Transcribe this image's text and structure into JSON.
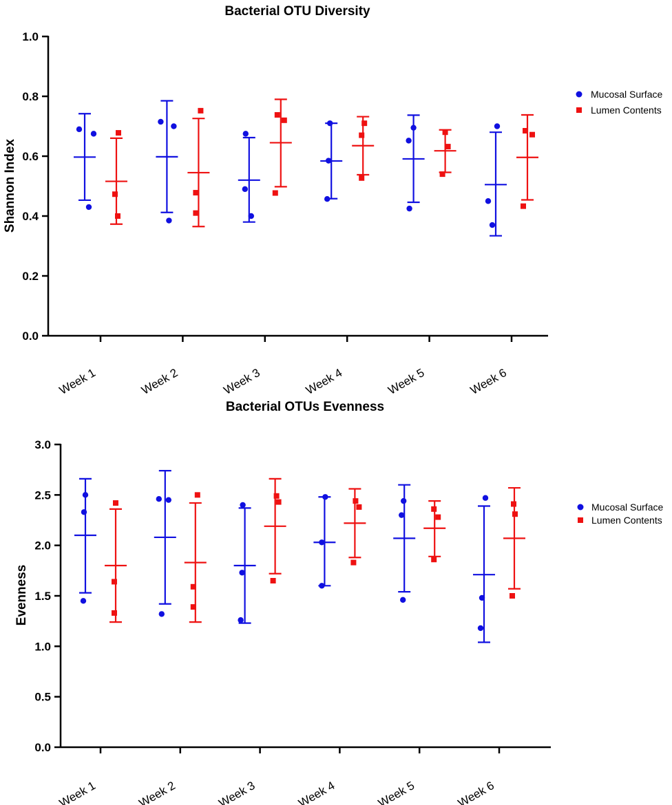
{
  "colors": {
    "mucosal": "#1010e0",
    "lumen": "#ee1111",
    "axis": "#000000"
  },
  "chart_data": [
    {
      "type": "scatter",
      "title": "Bacterial OTU Diversity",
      "xlabel": "",
      "ylabel": "Shannon Index",
      "ylim": [
        0.0,
        1.0
      ],
      "yticks": [
        0.0,
        0.2,
        0.4,
        0.6,
        0.8,
        1.0
      ],
      "ytick_labels": [
        "0.0",
        "0.2",
        "0.4",
        "0.6",
        "0.8",
        "1.0"
      ],
      "categories": [
        "Week 1",
        "Week 2",
        "Week 3",
        "Week 4",
        "Week 5",
        "Week 6"
      ],
      "legend_position": "right",
      "series": [
        {
          "name": "Mucosal Surface",
          "marker": "circle",
          "color": "#1010e0",
          "points": [
            [
              0.69,
              0.675,
              0.43
            ],
            [
              0.715,
              0.7,
              0.385
            ],
            [
              0.675,
              0.49,
              0.4
            ],
            [
              0.71,
              0.585,
              0.457
            ],
            [
              0.695,
              0.652,
              0.425
            ],
            [
              0.7,
              0.45,
              0.37
            ]
          ],
          "mean": [
            0.597,
            0.598,
            0.52,
            0.584,
            0.591,
            0.505
          ],
          "upper": [
            0.742,
            0.785,
            0.662,
            0.71,
            0.737,
            0.68
          ],
          "lower": [
            0.453,
            0.412,
            0.38,
            0.458,
            0.446,
            0.334
          ]
        },
        {
          "name": "Lumen Contents",
          "marker": "square",
          "color": "#ee1111",
          "points": [
            [
              0.678,
              0.473,
              0.4
            ],
            [
              0.752,
              0.478,
              0.41
            ],
            [
              0.738,
              0.72,
              0.477
            ],
            [
              0.71,
              0.67,
              0.527
            ],
            [
              0.68,
              0.632,
              0.54
            ],
            [
              0.685,
              0.672,
              0.433
            ]
          ],
          "mean": [
            0.516,
            0.545,
            0.645,
            0.635,
            0.618,
            0.596
          ],
          "upper": [
            0.66,
            0.726,
            0.79,
            0.732,
            0.688,
            0.738
          ],
          "lower": [
            0.373,
            0.365,
            0.498,
            0.538,
            0.546,
            0.454
          ]
        }
      ]
    },
    {
      "type": "scatter",
      "title": "Bacterial OTUs Evenness",
      "xlabel": "",
      "ylabel": "Evenness",
      "ylim": [
        0.0,
        3.0
      ],
      "yticks": [
        0.0,
        0.5,
        1.0,
        1.5,
        2.0,
        2.5,
        3.0
      ],
      "ytick_labels": [
        "0.0",
        "0.5",
        "1.0",
        "1.5",
        "2.0",
        "2.5",
        "3.0"
      ],
      "categories": [
        "Week 1",
        "Week 2",
        "Week 3",
        "Week 4",
        "Week 5",
        "Week 6"
      ],
      "legend_position": "right",
      "series": [
        {
          "name": "Mucosal Surface",
          "marker": "circle",
          "color": "#1010e0",
          "points": [
            [
              2.5,
              2.33,
              1.45
            ],
            [
              2.46,
              2.45,
              1.32
            ],
            [
              2.4,
              1.73,
              1.26
            ],
            [
              2.48,
              2.03,
              1.6
            ],
            [
              2.44,
              2.3,
              1.46
            ],
            [
              2.47,
              1.48,
              1.18
            ]
          ],
          "mean": [
            2.1,
            2.08,
            1.8,
            2.03,
            2.07,
            1.71
          ],
          "upper": [
            2.66,
            2.74,
            2.37,
            2.48,
            2.6,
            2.39
          ],
          "lower": [
            1.53,
            1.42,
            1.23,
            1.6,
            1.54,
            1.04
          ]
        },
        {
          "name": "Lumen Contents",
          "marker": "square",
          "color": "#ee1111",
          "points": [
            [
              2.42,
              1.64,
              1.33
            ],
            [
              2.5,
              1.59,
              1.39
            ],
            [
              2.49,
              2.43,
              1.65
            ],
            [
              2.44,
              2.38,
              1.83
            ],
            [
              2.36,
              2.28,
              1.86
            ],
            [
              2.41,
              2.31,
              1.5
            ]
          ],
          "mean": [
            1.8,
            1.83,
            2.19,
            2.22,
            2.17,
            2.07
          ],
          "upper": [
            2.36,
            2.42,
            2.66,
            2.56,
            2.44,
            2.57
          ],
          "lower": [
            1.24,
            1.24,
            1.72,
            1.88,
            1.89,
            1.57
          ]
        }
      ]
    }
  ]
}
